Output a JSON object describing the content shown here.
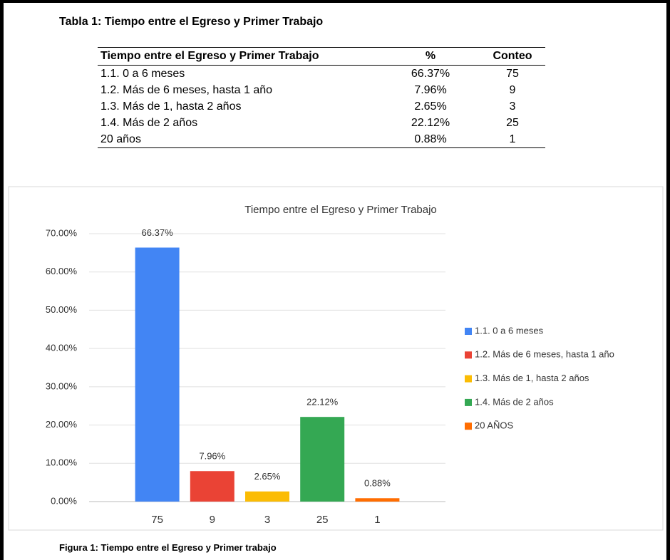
{
  "table_caption": "Tabla 1: Tiempo entre el Egreso y Primer Trabajo",
  "table": {
    "header": [
      "Tiempo entre el Egreso y Primer Trabajo",
      "%",
      "Conteo"
    ],
    "rows": [
      [
        "1.1. 0 a 6 meses",
        "66.37%",
        "75"
      ],
      [
        "1.2. Más de 6 meses, hasta 1 año",
        "7.96%",
        "9"
      ],
      [
        "1.3. Más de 1, hasta 2 años",
        "2.65%",
        "3"
      ],
      [
        "1.4. Más de 2 años",
        "22.12%",
        "25"
      ],
      [
        "20 años",
        "0.88%",
        "1"
      ]
    ]
  },
  "chart_data": {
    "type": "bar",
    "title": "Tiempo entre el Egreso y Primer Trabajo",
    "categories": [
      "75",
      "9",
      "3",
      "25",
      "1"
    ],
    "values": [
      66.37,
      7.96,
      2.65,
      22.12,
      0.88
    ],
    "value_labels": [
      "66.37%",
      "7.96%",
      "2.65%",
      "22.12%",
      "0.88%"
    ],
    "colors": [
      "#4285f4",
      "#ea4335",
      "#fbbc04",
      "#34a853",
      "#ff6d01"
    ],
    "legend": [
      "1.1. 0 a 6 meses",
      "1.2. Más de 6 meses, hasta 1 año",
      "1.3. Más de 1, hasta 2 años",
      "1.4. Más de 2 años",
      "20 AÑOS"
    ],
    "legend_position": "right",
    "ylim": [
      0,
      70
    ],
    "yticks": [
      {
        "value": 0,
        "label": "0.00%"
      },
      {
        "value": 10,
        "label": "10.00%"
      },
      {
        "value": 20,
        "label": "20.00%"
      },
      {
        "value": 30,
        "label": "30.00%"
      },
      {
        "value": 40,
        "label": "40.00%"
      },
      {
        "value": 50,
        "label": "50.00%"
      },
      {
        "value": 60,
        "label": "60.00%"
      },
      {
        "value": 70,
        "label": "70.00%"
      }
    ],
    "grid": true
  },
  "figure_caption": "Figura 1: Tiempo entre el Egreso y Primer trabajo"
}
